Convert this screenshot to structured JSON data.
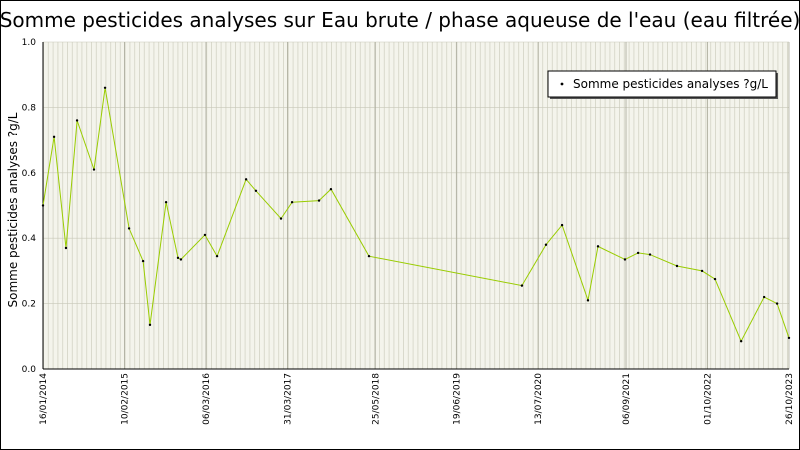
{
  "chart_data": {
    "type": "line",
    "title": "Somme pesticides analyses sur Eau brute / phase aqueuse de l'eau (eau filtrée)",
    "ylabel": "Somme pesticides analyses ?g/L",
    "x": [
      "2014-01-16",
      "2014-03-10",
      "2014-05-06",
      "2014-06-28",
      "2014-09-17",
      "2014-11-09",
      "2015-03-04",
      "2015-05-10",
      "2015-06-12",
      "2015-08-28",
      "2015-10-24",
      "2015-11-07",
      "2016-03-01",
      "2016-04-28",
      "2016-09-14",
      "2016-10-31",
      "2017-02-28",
      "2017-04-22",
      "2017-08-29",
      "2017-10-25",
      "2018-04-25",
      "2020-04-26",
      "2020-08-19",
      "2020-11-04",
      "2021-03-08",
      "2021-04-25",
      "2021-09-01",
      "2021-11-03",
      "2021-12-30",
      "2022-05-08",
      "2022-09-05",
      "2022-11-06",
      "2023-03-11",
      "2023-06-29",
      "2023-08-30",
      "2023-10-26"
    ],
    "series": [
      {
        "name": "Somme pesticides analyses ?g/L",
        "color": "#99cc00",
        "marker_color": "#000000",
        "values": [
          0.5,
          0.71,
          0.37,
          0.76,
          0.61,
          0.86,
          0.43,
          0.33,
          0.135,
          0.51,
          0.34,
          0.335,
          0.41,
          0.345,
          0.58,
          0.545,
          0.46,
          0.51,
          0.515,
          0.55,
          0.345,
          0.255,
          0.38,
          0.44,
          0.21,
          0.375,
          0.335,
          0.355,
          0.35,
          0.315,
          0.3,
          0.275,
          0.085,
          0.22,
          0.2,
          0.095
        ]
      }
    ],
    "xlim": [
      "2014-01-16",
      "2023-10-26"
    ],
    "xticks": [
      {
        "value": "2014-01-16",
        "label": "16/01/2014"
      },
      {
        "value": "2015-02-10",
        "label": "10/02/2015"
      },
      {
        "value": "2016-03-06",
        "label": "06/03/2016"
      },
      {
        "value": "2017-03-31",
        "label": "31/03/2017"
      },
      {
        "value": "2018-05-25",
        "label": "25/05/2018"
      },
      {
        "value": "2019-06-19",
        "label": "19/06/2019"
      },
      {
        "value": "2020-07-13",
        "label": "13/07/2020"
      },
      {
        "value": "2021-09-06",
        "label": "06/09/2021"
      },
      {
        "value": "2022-10-01",
        "label": "01/10/2022"
      },
      {
        "value": "2023-10-26",
        "label": "26/10/2023"
      }
    ],
    "ylim": [
      0,
      1
    ],
    "yticks": [
      {
        "value": 0,
        "label": "0.0"
      },
      0.2,
      0.4,
      0.6,
      0.8,
      {
        "value": 1,
        "label": "1.0"
      }
    ],
    "grid": true,
    "legend": "upper right"
  }
}
